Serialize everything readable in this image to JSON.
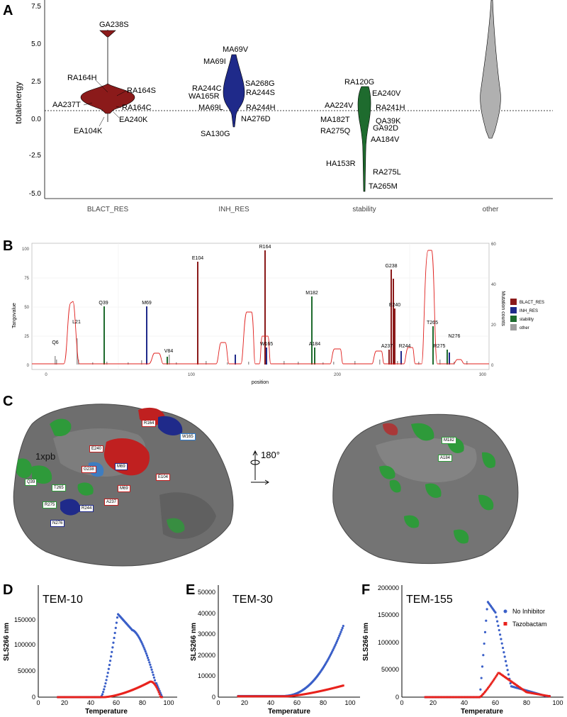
{
  "panels": {
    "a": "A",
    "b": "B",
    "c": "C",
    "d": "D",
    "e": "E",
    "f": "F"
  },
  "colors": {
    "blact": "#8b1a1a",
    "inh": "#1f2a8a",
    "stability": "#1e6b2e",
    "other": "#9e9e9e",
    "curve": "#e0201e",
    "no_inhibitor": "#3a5fc8",
    "tazobactam": "#e8221c"
  },
  "panel_a": {
    "ylabel": "totalenergy",
    "yticks": [
      "7.5",
      "5.0",
      "2.5",
      "0.0",
      "-2.5",
      "-5.0"
    ],
    "categories": [
      "BLACT_RES",
      "INH_RES",
      "stability",
      "other"
    ],
    "labels_blact": [
      "GA238S",
      "RA164H",
      "RA164S",
      "AA237T",
      "RA164C",
      "EA240K",
      "EA104K"
    ],
    "labels_inh": [
      "MA69V",
      "MA69I",
      "SA268G",
      "RA244C",
      "WA165R",
      "RA244S",
      "MA69L",
      "RA244H",
      "NA276D",
      "SA130G"
    ],
    "labels_stab": [
      "RA120G",
      "EA240V",
      "AA224V",
      "RA241H",
      "MA182T",
      "QA39K",
      "RA275Q",
      "GA92D",
      "AA184V",
      "HA153R",
      "RA275L",
      "TA265M"
    ]
  },
  "panel_b": {
    "ylabel_left": "Tangovalue",
    "ylabel_right": "Mutation counts",
    "xlabel": "position",
    "yticks_left": [
      "100",
      "75",
      "50",
      "25",
      "0"
    ],
    "yticks_right": [
      "60",
      "40",
      "20",
      "0"
    ],
    "xticks": [
      "0",
      "100",
      "200",
      "300"
    ],
    "legend": [
      "BLACT_RES",
      "INH_RES",
      "stability",
      "other"
    ],
    "bar_labels": [
      "Q6",
      "L21",
      "Q39",
      "M69",
      "V84",
      "E104",
      "R164",
      "W165",
      "M182",
      "A184",
      "G238",
      "E240",
      "A237",
      "R244",
      "T265",
      "R275",
      "N276"
    ]
  },
  "panel_c": {
    "pdb": "1xpb",
    "rotation": "180°",
    "labels_left": [
      "R164",
      "W165",
      "E240",
      "G238",
      "M69",
      "E104",
      "M69",
      "A237",
      "Q39",
      "T265",
      "R275",
      "R244",
      "N276"
    ],
    "labels_right": [
      "M182",
      "A184"
    ]
  },
  "panel_d": {
    "title": "TEM-10",
    "ylabel": "SLS266 nm",
    "xlabel": "Temperature",
    "yticks": [
      "150000",
      "100000",
      "50000",
      "0"
    ],
    "xticks": [
      "0",
      "20",
      "40",
      "60",
      "80",
      "100"
    ]
  },
  "panel_e": {
    "title": "TEM-30",
    "ylabel": "SLS266 nm",
    "xlabel": "Temperature",
    "yticks": [
      "50000",
      "40000",
      "30000",
      "20000",
      "10000",
      "0"
    ],
    "xticks": [
      "0",
      "20",
      "40",
      "60",
      "80",
      "100"
    ]
  },
  "panel_f": {
    "title": "TEM-155",
    "ylabel": "SLS266 nm",
    "xlabel": "Temperature",
    "yticks": [
      "200000",
      "150000",
      "100000",
      "50000",
      "0"
    ],
    "xticks": [
      "0",
      "20",
      "40",
      "60",
      "80",
      "100"
    ],
    "legend": [
      "No Inhibitor",
      "Tazobactam"
    ]
  }
}
